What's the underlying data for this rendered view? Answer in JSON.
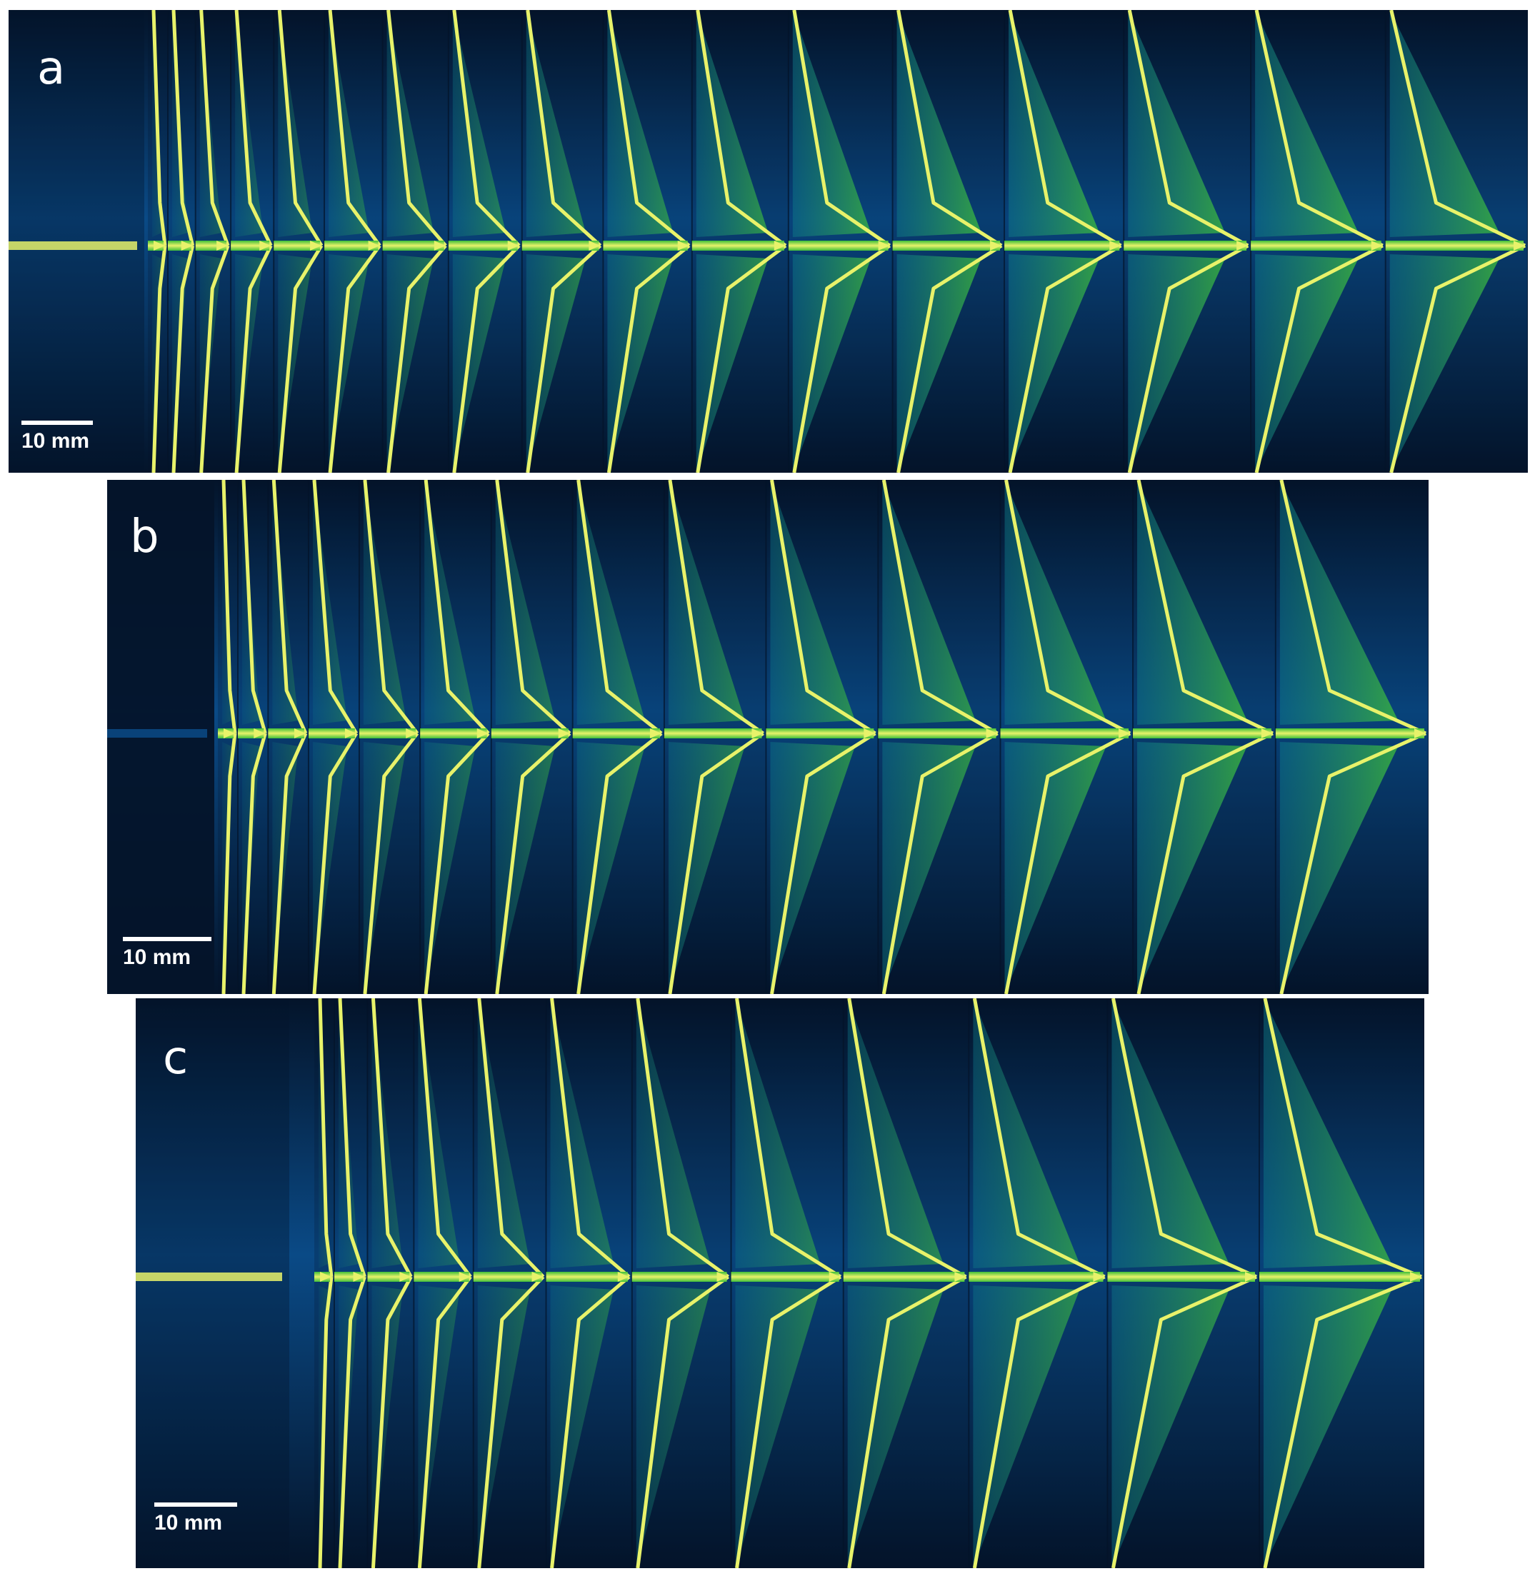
{
  "figure": {
    "panels": [
      {
        "id": "a",
        "label": "a",
        "scale_label": "10 mm"
      },
      {
        "id": "b",
        "label": "b",
        "scale_label": "10 mm"
      },
      {
        "id": "c",
        "label": "c",
        "scale_label": "10 mm"
      }
    ]
  },
  "colors": {
    "background": "#ffffff",
    "dark": "#04142a",
    "blue": "#0a4a86",
    "teal": "#0e7a8a",
    "green": "#3fbf3a",
    "yellow": "#e8f26a",
    "white": "#ffffff"
  }
}
